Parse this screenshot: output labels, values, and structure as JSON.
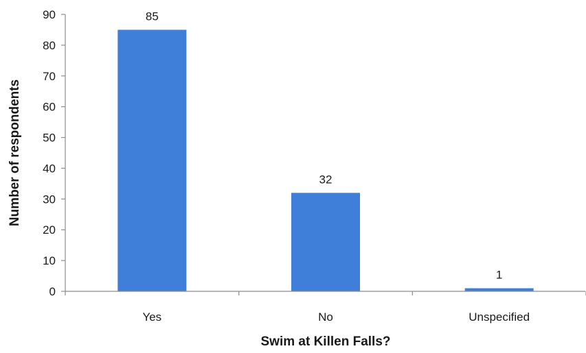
{
  "chart_data": {
    "type": "bar",
    "title": "",
    "xlabel": "Swim at Killen Falls?",
    "ylabel": "Number of respondents",
    "categories": [
      "Yes",
      "No",
      "Unspecified"
    ],
    "values": [
      85,
      32,
      1
    ],
    "data_labels": [
      "85",
      "32",
      "1"
    ],
    "ylim": [
      0,
      90
    ],
    "yticks": [
      0,
      10,
      20,
      30,
      40,
      50,
      60,
      70,
      80,
      90
    ],
    "bar_color": "#3f7fd9",
    "grid": false,
    "legend": "none"
  }
}
